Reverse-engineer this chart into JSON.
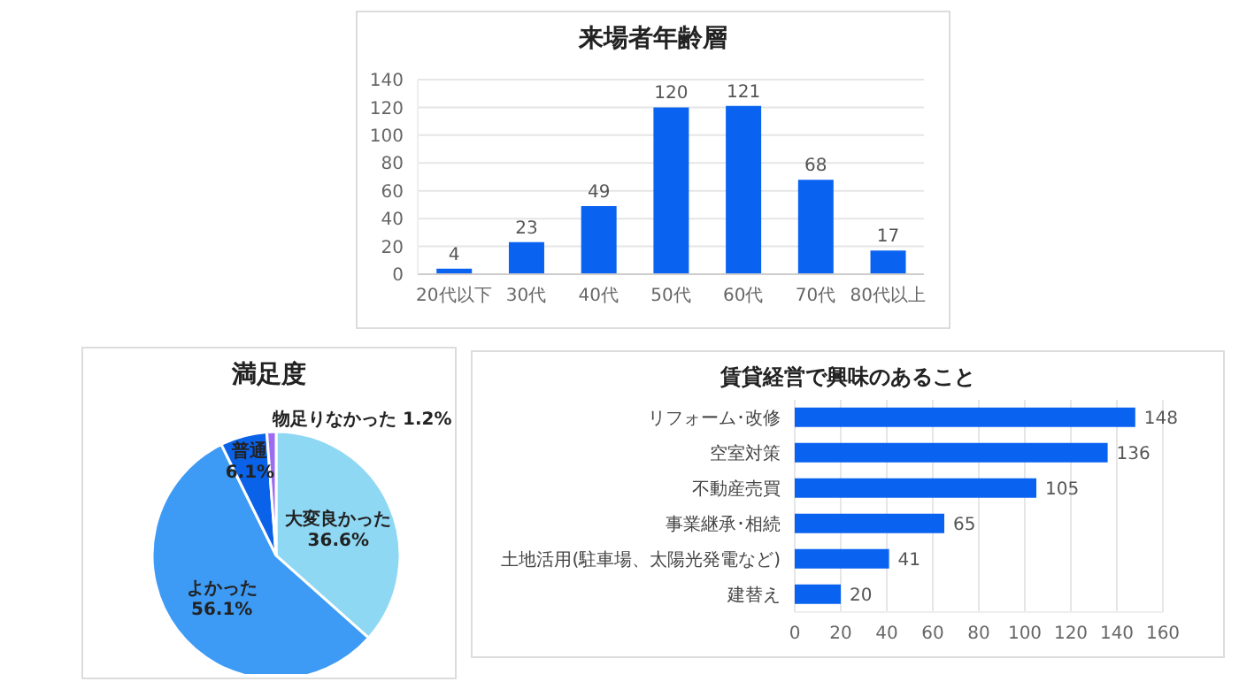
{
  "chart_data": [
    {
      "type": "bar",
      "title": "来場者年齢層",
      "categories": [
        "20代以下",
        "30代",
        "40代",
        "50代",
        "60代",
        "70代",
        "80代以上"
      ],
      "values": [
        4,
        23,
        49,
        120,
        121,
        68,
        17
      ],
      "color": "#0a62f0",
      "ylim": [
        0,
        140
      ],
      "yticks": [
        0,
        20,
        40,
        60,
        80,
        100,
        120,
        140
      ],
      "grid": "y",
      "data_labels": true,
      "legend": false
    },
    {
      "type": "pie",
      "title": "満足度",
      "categories": [
        "大変良かった",
        "よかった",
        "普通",
        "物足りなかった"
      ],
      "values": [
        36.6,
        56.1,
        6.1,
        1.2
      ],
      "value_labels": [
        "36.6%",
        "56.1%",
        "6.1%",
        "1.2%"
      ],
      "colors": [
        "#8fd8f4",
        "#3d9bf5",
        "#0a62e8",
        "#9b6cf0"
      ],
      "legend": false
    },
    {
      "type": "bar",
      "orientation": "horizontal",
      "title": "賃貸経営で興味のあること",
      "categories": [
        "リフォーム･改修",
        "空室対策",
        "不動産売買",
        "事業継承･相続",
        "土地活用(駐車場、太陽光発電など)",
        "建替え"
      ],
      "values": [
        148,
        136,
        105,
        65,
        41,
        20
      ],
      "color": "#0a62f0",
      "xlim": [
        0,
        160
      ],
      "xticks": [
        0,
        20,
        40,
        60,
        80,
        100,
        120,
        140,
        160
      ],
      "grid": "x",
      "data_labels": true,
      "legend": false
    }
  ]
}
